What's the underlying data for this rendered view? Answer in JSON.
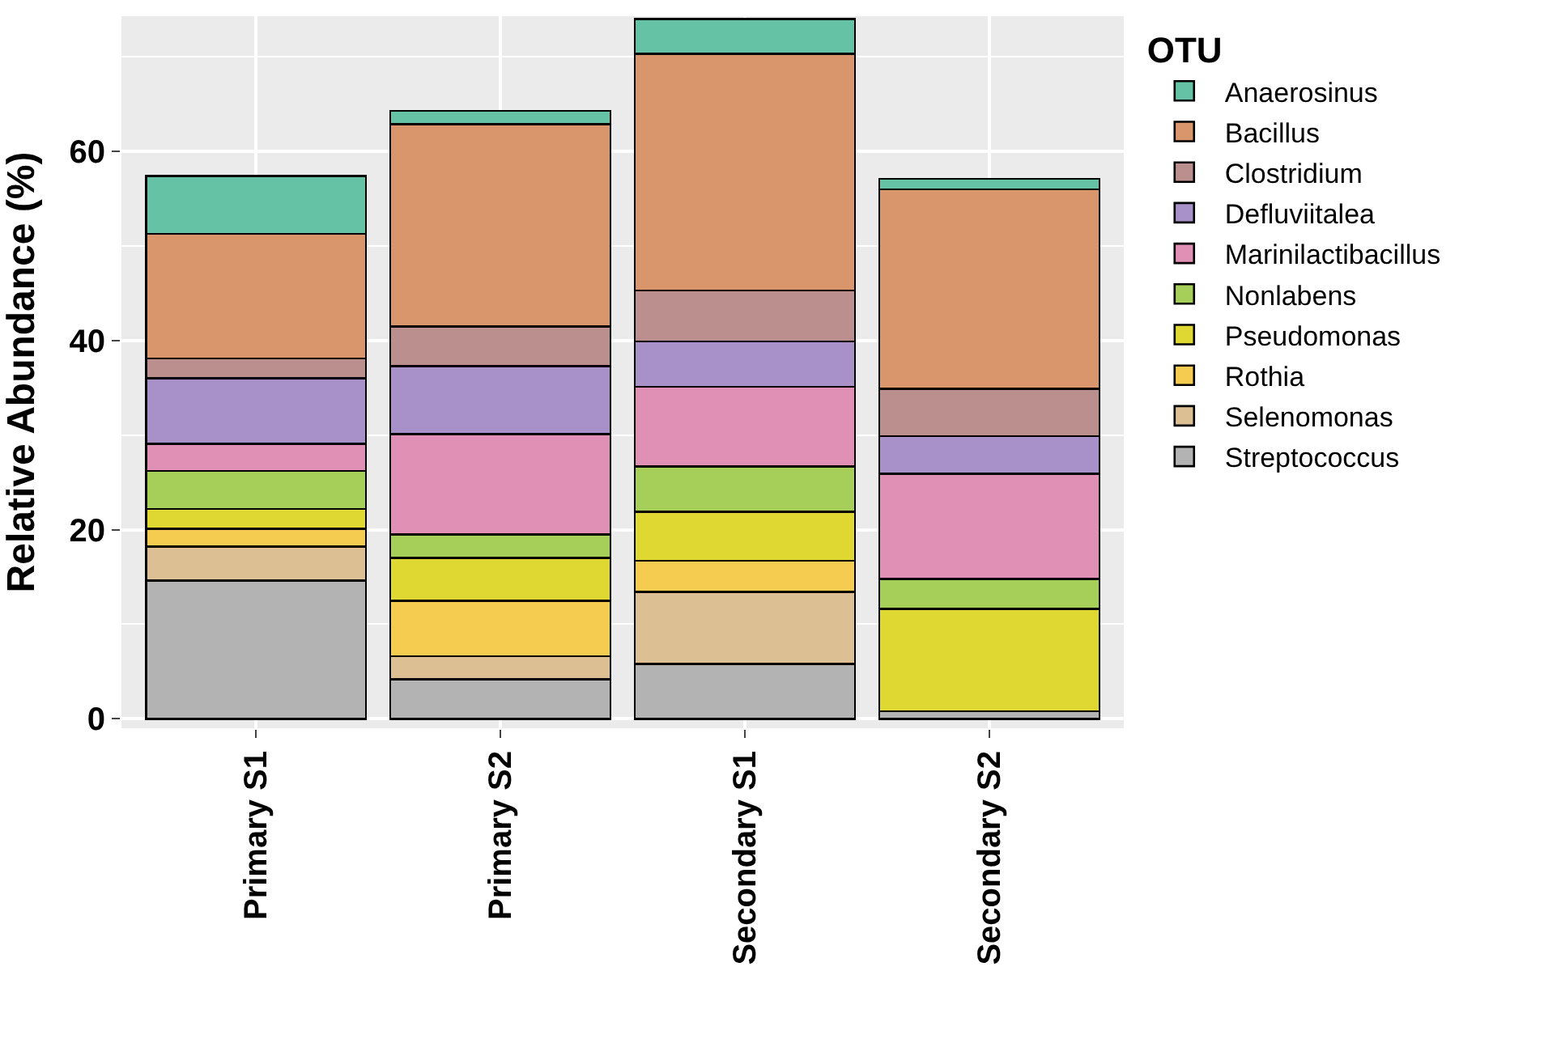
{
  "chart_data": {
    "type": "bar",
    "stacked": true,
    "ylabel": "Relative Abundance (%)",
    "legend_title": "OTU",
    "legend": "right",
    "categories": [
      "Primary S1",
      "Primary S2",
      "Secondary S1",
      "Secondary S2"
    ],
    "ylim": [
      -1,
      74.3
    ],
    "yticks": [
      0,
      20,
      40,
      60
    ],
    "grid": true,
    "series": [
      {
        "name": "Streptococcus",
        "color": "#b3b3b3",
        "values": [
          14.6,
          4.2,
          5.8,
          0.8
        ]
      },
      {
        "name": "Selenomonas",
        "color": "#dcc094",
        "values": [
          3.6,
          2.4,
          7.6,
          null
        ]
      },
      {
        "name": "Rothia",
        "color": "#f5cc50",
        "values": [
          1.9,
          5.9,
          3.3,
          0
        ]
      },
      {
        "name": "Pseudomonas",
        "color": "#e0d832",
        "values": [
          2.1,
          4.5,
          5.2,
          10.8
        ]
      },
      {
        "name": "Nonlabens",
        "color": "#a6cf5a",
        "values": [
          4.0,
          2.5,
          4.8,
          3.2
        ]
      },
      {
        "name": "Marinilactibacillus",
        "color": "#e08fb5",
        "values": [
          2.9,
          10.6,
          8.4,
          11.1
        ]
      },
      {
        "name": "Defluviitalea",
        "color": "#a890c8",
        "values": [
          6.9,
          7.2,
          4.8,
          4.0
        ]
      },
      {
        "name": "Clostridium",
        "color": "#bc8f8f",
        "values": [
          2.1,
          4.2,
          5.4,
          5.0
        ]
      },
      {
        "name": "Bacillus",
        "color": "#d9956b",
        "values": [
          13.2,
          21.4,
          25.0,
          21.1
        ]
      },
      {
        "name": "Anaerosinus",
        "color": "#66c2a5",
        "values": [
          6.1,
          1.4,
          3.7,
          1.1
        ]
      }
    ]
  }
}
